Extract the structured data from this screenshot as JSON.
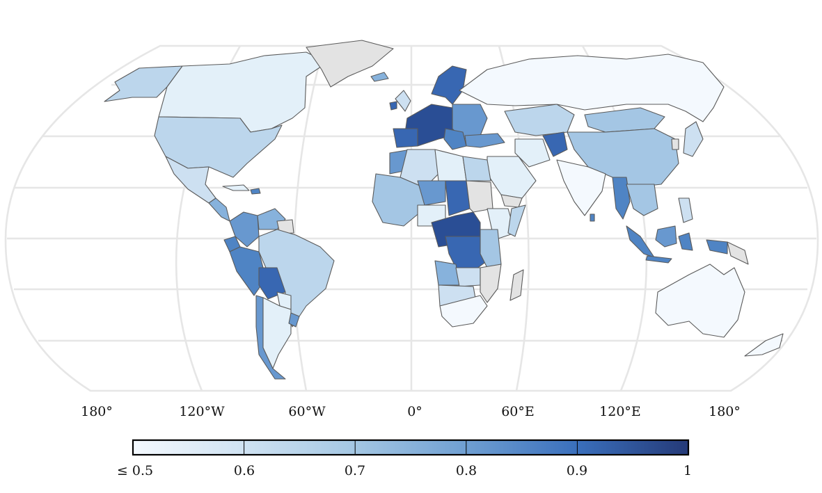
{
  "map": {
    "projection": "Equal Earth",
    "graticule": true,
    "no_data_color": "#e3e3e3",
    "border_color": "#5a5a5a",
    "longitude_labels": [
      "180°",
      "120°W",
      "60°W",
      "0°",
      "60°E",
      "120°E",
      "180°"
    ]
  },
  "colorbar": {
    "ticks": [
      "≤ 0.5",
      "0.6",
      "0.7",
      "0.8",
      "0.9",
      "1"
    ],
    "bins": [
      "#f4f9fe",
      "#cfe2f2",
      "#a4c7e3",
      "#6f9fd2",
      "#3a6fbc",
      "#253a78"
    ]
  },
  "colors": {
    "c050": "#f4f9fe",
    "c055": "#e3f0f9",
    "c060": "#cde0f1",
    "c065": "#bcd6ec",
    "c070": "#a4c6e4",
    "c075": "#87b2dc",
    "c080": "#6898cf",
    "c085": "#4f84c4",
    "c090": "#3867b2",
    "c095": "#2a4e95"
  }
}
